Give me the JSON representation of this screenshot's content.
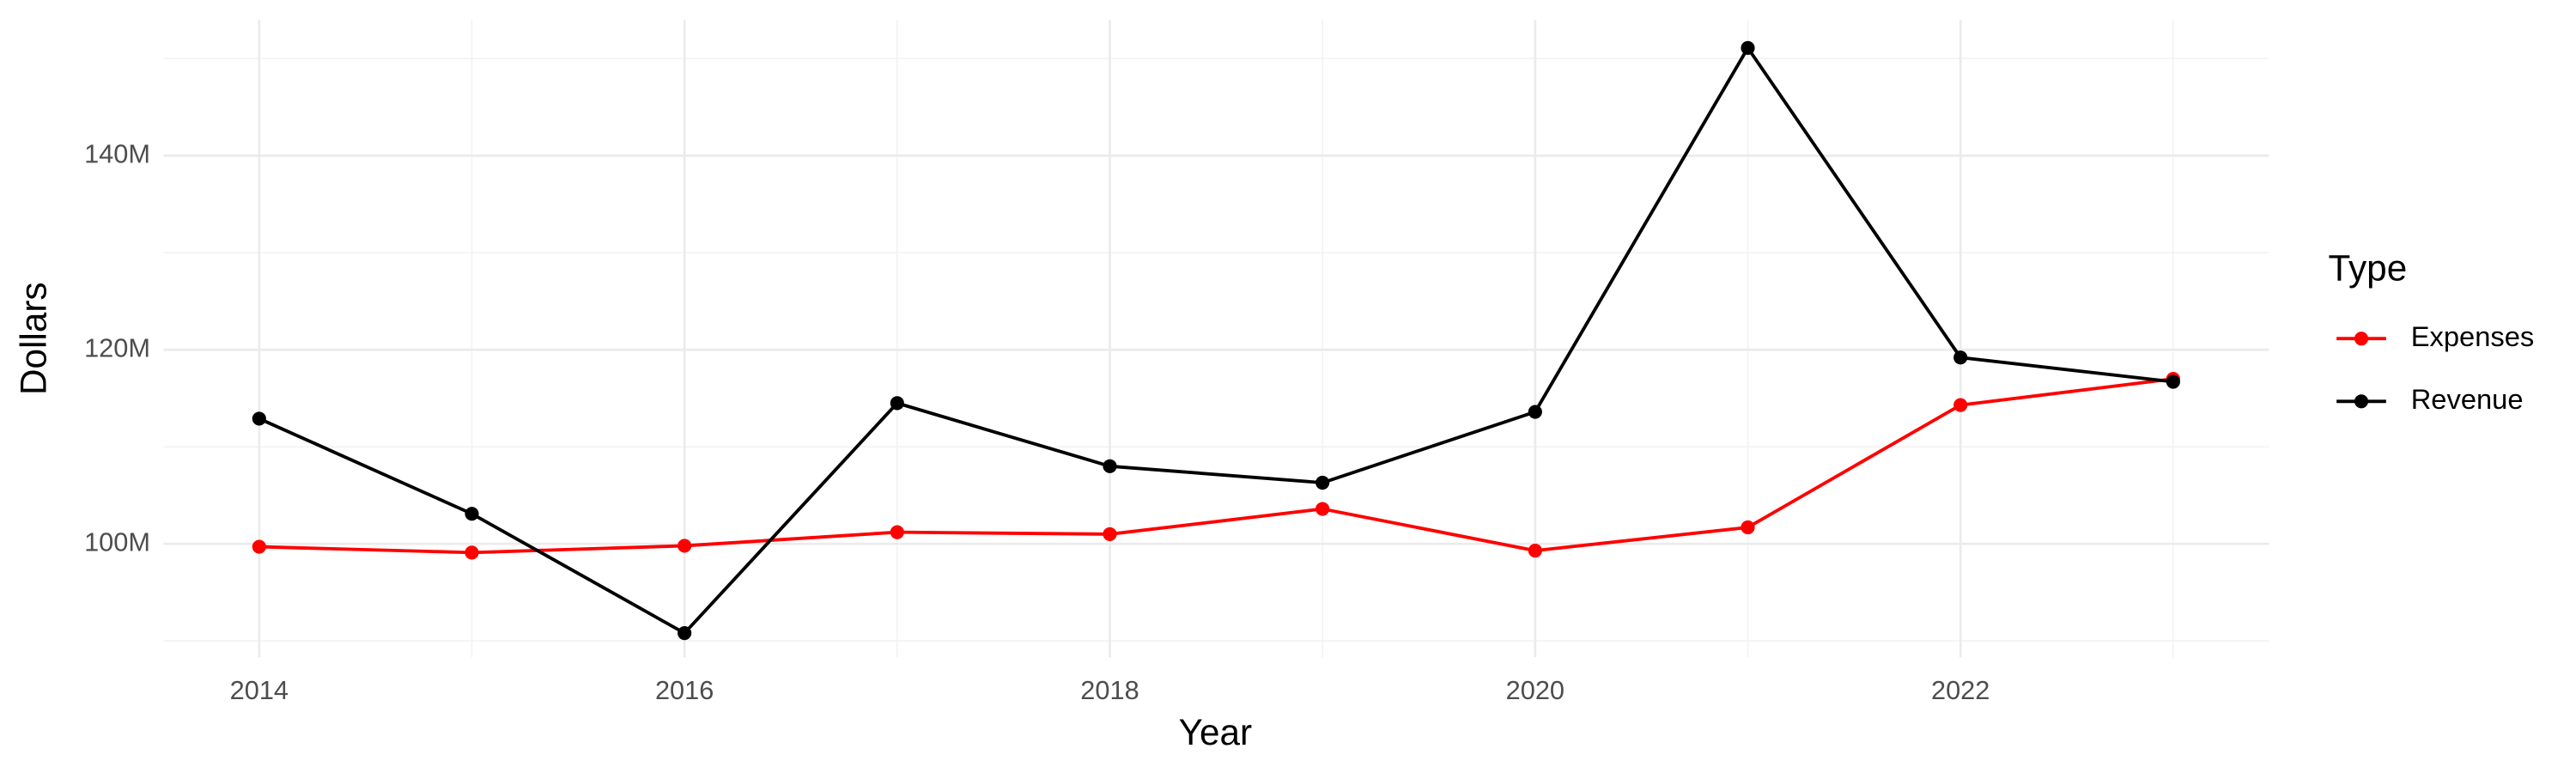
{
  "chart_data": {
    "type": "line",
    "x_label": "Year",
    "y_label": "Dollars",
    "legend_title": "Type",
    "legend_position": "right",
    "grid": true,
    "x": [
      2014,
      2015,
      2016,
      2017,
      2018,
      2019,
      2020,
      2021,
      2022,
      2023
    ],
    "series": [
      {
        "name": "Expenses",
        "color": "#ff0000",
        "values": [
          99700000,
          99100000,
          99800000,
          101200000,
          101000000,
          103600000,
          99300000,
          101700000,
          114300000,
          117000000
        ]
      },
      {
        "name": "Revenue",
        "color": "#000000",
        "values": [
          112900000,
          103100000,
          90800000,
          114500000,
          108000000,
          106300000,
          113600000,
          151100000,
          119200000,
          116700000
        ]
      }
    ],
    "xlim": [
      2013.55,
      2023.45
    ],
    "xticks": [
      2014,
      2016,
      2018,
      2020,
      2022
    ],
    "x_minor_ticks": [
      2015,
      2017,
      2019,
      2021,
      2023
    ],
    "ylim": [
      88300000,
      154000000
    ],
    "yticks": [
      {
        "value": 100000000,
        "label": "100M"
      },
      {
        "value": 120000000,
        "label": "120M"
      },
      {
        "value": 140000000,
        "label": "140M"
      }
    ],
    "y_minor_ticks": [
      90000000,
      110000000,
      130000000,
      150000000
    ]
  }
}
